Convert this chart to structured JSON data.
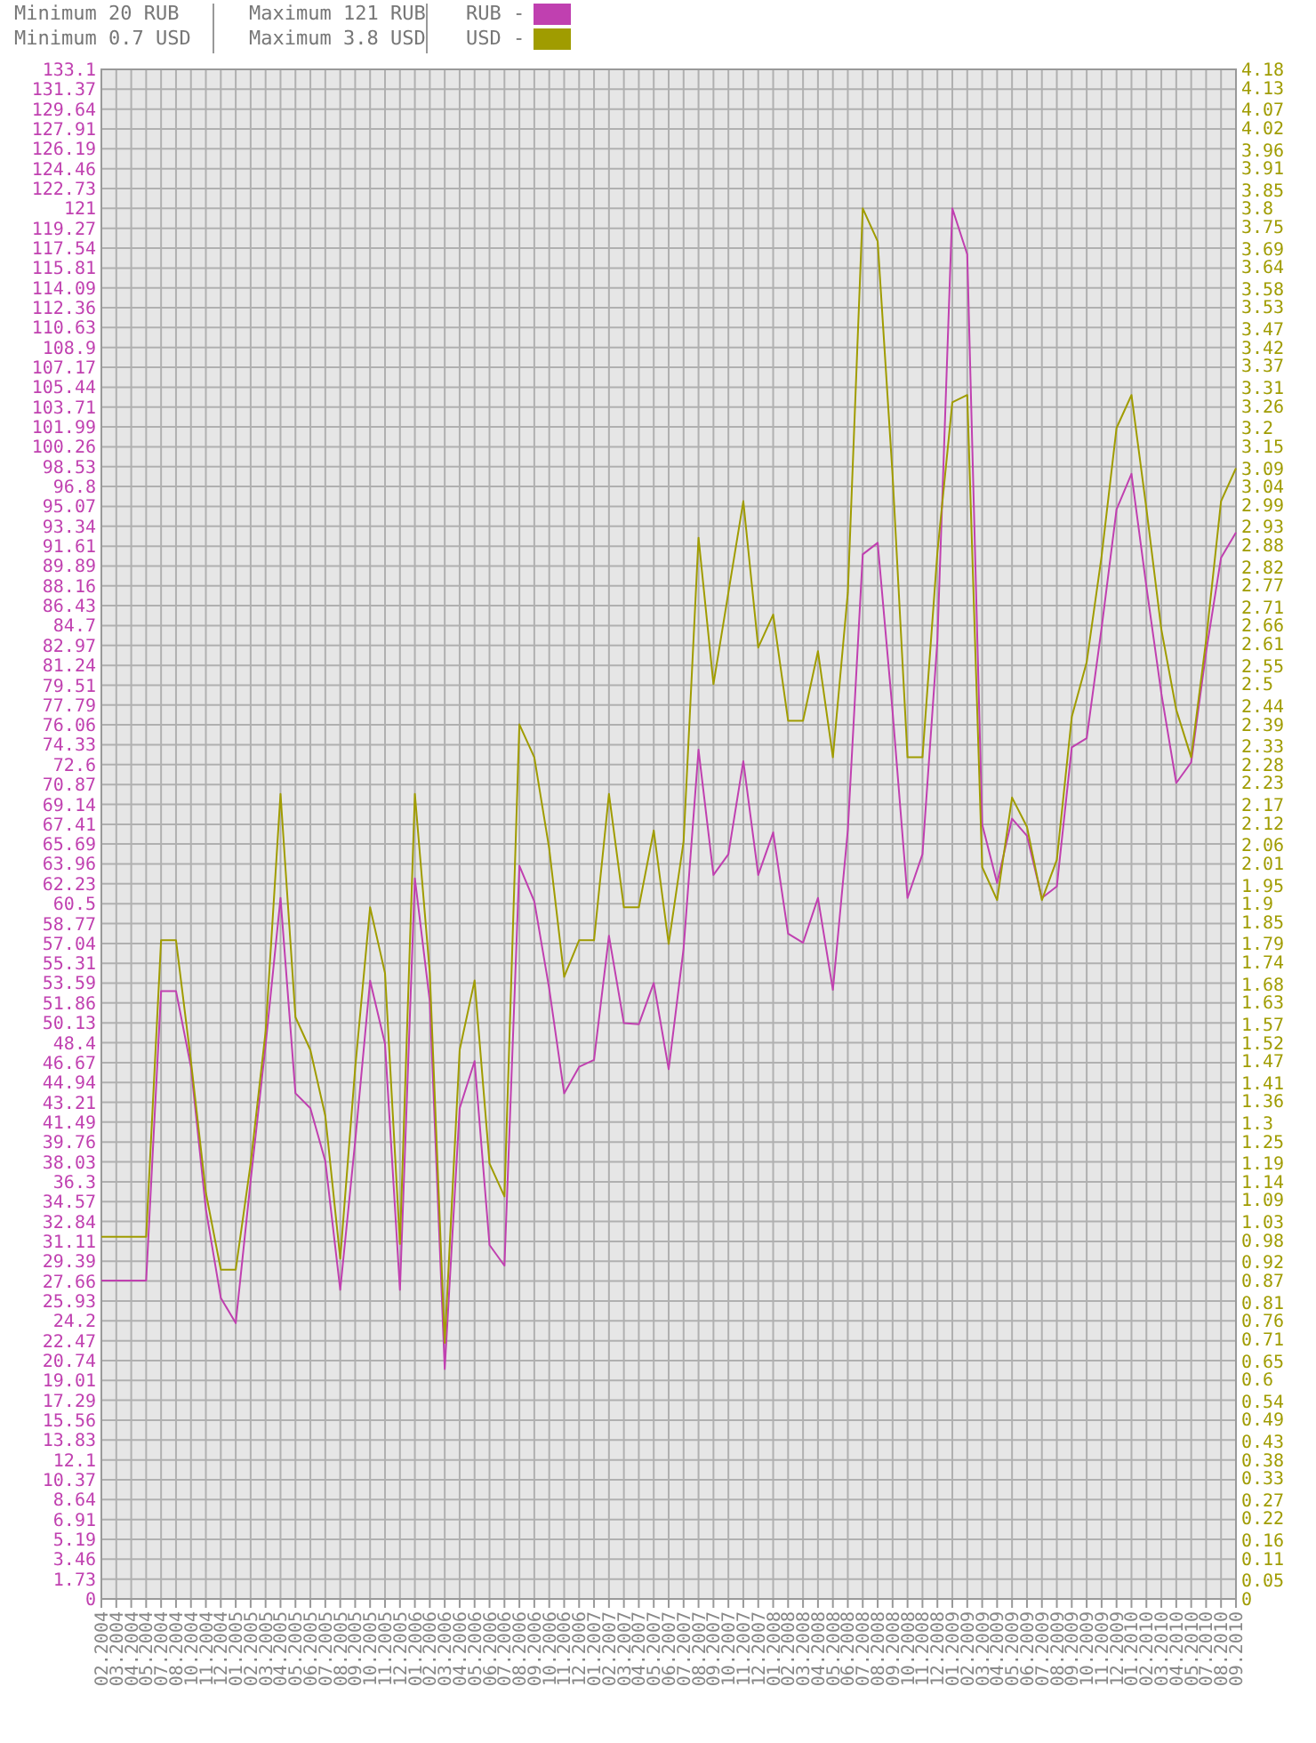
{
  "chart_data": {
    "type": "line",
    "categories": [
      "02.2004",
      "03.2004",
      "04.2004",
      "05.2004",
      "07.2004",
      "08.2004",
      "10.2004",
      "11.2004",
      "12.2004",
      "01.2005",
      "02.2005",
      "03.2005",
      "04.2005",
      "05.2005",
      "06.2005",
      "07.2005",
      "08.2005",
      "09.2005",
      "10.2005",
      "11.2005",
      "12.2005",
      "01.2006",
      "02.2006",
      "03.2006",
      "04.2006",
      "05.2006",
      "06.2006",
      "07.2006",
      "08.2006",
      "09.2006",
      "10.2006",
      "11.2006",
      "12.2006",
      "01.2007",
      "02.2007",
      "03.2007",
      "04.2007",
      "05.2007",
      "06.2007",
      "07.2007",
      "08.2007",
      "09.2007",
      "10.2007",
      "11.2007",
      "12.2007",
      "01.2008",
      "02.2008",
      "03.2008",
      "04.2008",
      "05.2008",
      "06.2008",
      "07.2008",
      "08.2008",
      "09.2008",
      "10.2008",
      "11.2008",
      "12.2008",
      "01.2009",
      "02.2009",
      "03.2009",
      "04.2009",
      "05.2009",
      "06.2009",
      "07.2009",
      "08.2009",
      "09.2009",
      "10.2009",
      "11.2009",
      "12.2009",
      "01.2010",
      "02.2010",
      "03.2010",
      "04.2010",
      "05.2010",
      "07.2010",
      "08.2010",
      "09.2010"
    ],
    "series": [
      {
        "name": "RUB -",
        "color": "#c040b0",
        "values": [
          27.7,
          27.7,
          27.7,
          27.7,
          52.9,
          52.9,
          46.3,
          33.9,
          26.2,
          24.0,
          36.4,
          48.2,
          61.0,
          44.0,
          42.7,
          38.1,
          26.9,
          39.8,
          53.8,
          48.3,
          26.9,
          62.7,
          52.0,
          20.0,
          42.7,
          46.8,
          30.8,
          29.0,
          63.8,
          60.7,
          53.1,
          44.0,
          46.3,
          46.9,
          57.7,
          50.1,
          50.0,
          53.6,
          46.1,
          56.6,
          73.9,
          63.0,
          64.8,
          72.9,
          63.0,
          66.7,
          57.9,
          57.1,
          61.0,
          53.0,
          66.9,
          90.9,
          91.9,
          77.2,
          61.0,
          64.8,
          83.4,
          121,
          117.0,
          67.4,
          62.3,
          67.9,
          66.4,
          61.0,
          62.0,
          74.1,
          74.9,
          84.5,
          94.8,
          97.9,
          88.1,
          78.8,
          71.0,
          72.8,
          82.4,
          90.6,
          92.8
        ]
      },
      {
        "name": "USD -",
        "color": "#a09c00",
        "axis": "y2",
        "values": [
          0.99,
          0.99,
          0.99,
          0.99,
          1.8,
          1.8,
          1.47,
          1.11,
          0.9,
          0.9,
          1.19,
          1.55,
          2.2,
          1.59,
          1.5,
          1.32,
          0.93,
          1.45,
          1.89,
          1.71,
          0.97,
          2.2,
          1.71,
          0.7,
          1.5,
          1.69,
          1.19,
          1.1,
          2.39,
          2.3,
          2.05,
          1.7,
          1.8,
          1.8,
          2.2,
          1.89,
          1.89,
          2.1,
          1.79,
          2.07,
          2.9,
          2.5,
          2.75,
          3.0,
          2.6,
          2.69,
          2.4,
          2.4,
          2.59,
          2.3,
          2.75,
          3.8,
          3.71,
          3.07,
          2.3,
          2.3,
          2.86,
          3.27,
          3.29,
          2.0,
          1.91,
          2.19,
          2.11,
          1.91,
          2.02,
          2.41,
          2.56,
          2.85,
          3.2,
          3.29,
          2.98,
          2.65,
          2.43,
          2.3,
          2.62,
          3.0,
          3.09
        ]
      }
    ],
    "ylim": [
      0,
      133.1
    ],
    "yticks": [
      0,
      1.73,
      3.46,
      5.19,
      6.91,
      8.64,
      10.37,
      12.1,
      13.83,
      15.56,
      17.29,
      19.01,
      20.74,
      22.47,
      24.2,
      25.93,
      27.66,
      29.39,
      31.11,
      32.84,
      34.57,
      36.3,
      38.03,
      39.76,
      41.49,
      43.21,
      44.94,
      46.67,
      48.4,
      50.13,
      51.86,
      53.59,
      55.31,
      57.04,
      58.77,
      60.5,
      62.23,
      63.96,
      65.69,
      67.41,
      69.14,
      70.87,
      72.6,
      74.33,
      76.06,
      77.79,
      79.51,
      81.24,
      82.97,
      84.7,
      86.43,
      88.16,
      89.89,
      91.61,
      93.34,
      95.07,
      96.8,
      98.53,
      100.26,
      101.99,
      103.71,
      105.44,
      107.17,
      108.9,
      110.63,
      112.36,
      114.09,
      115.81,
      117.54,
      119.27,
      121,
      122.73,
      124.46,
      126.19,
      127.91,
      129.64,
      131.37,
      133.1
    ],
    "y2lim": [
      0,
      4.18
    ],
    "y2ticks": [
      0,
      0.05,
      0.11,
      0.16,
      0.22,
      0.27,
      0.33,
      0.38,
      0.43,
      0.49,
      0.54,
      0.6,
      0.65,
      0.71,
      0.76,
      0.81,
      0.87,
      0.92,
      0.98,
      1.03,
      1.09,
      1.14,
      1.19,
      1.25,
      1.3,
      1.36,
      1.41,
      1.47,
      1.52,
      1.57,
      1.63,
      1.68,
      1.74,
      1.79,
      1.85,
      1.9,
      1.95,
      2.01,
      2.06,
      2.12,
      2.17,
      2.23,
      2.28,
      2.33,
      2.39,
      2.44,
      2.5,
      2.55,
      2.61,
      2.66,
      2.71,
      2.77,
      2.82,
      2.88,
      2.93,
      2.99,
      3.04,
      3.09,
      3.15,
      3.2,
      3.26,
      3.31,
      3.37,
      3.42,
      3.47,
      3.53,
      3.58,
      3.64,
      3.69,
      3.75,
      3.8,
      3.85,
      3.91,
      3.96,
      4.02,
      4.07,
      4.13,
      4.18
    ],
    "annotations": [
      "Minimum 20 RUB",
      "Minimum 0.7 USD",
      "Maximum 121 RUB",
      "Maximum 3.8 USD"
    ],
    "grid": true,
    "legend": "top",
    "marker": "none",
    "line_style": "solid"
  }
}
